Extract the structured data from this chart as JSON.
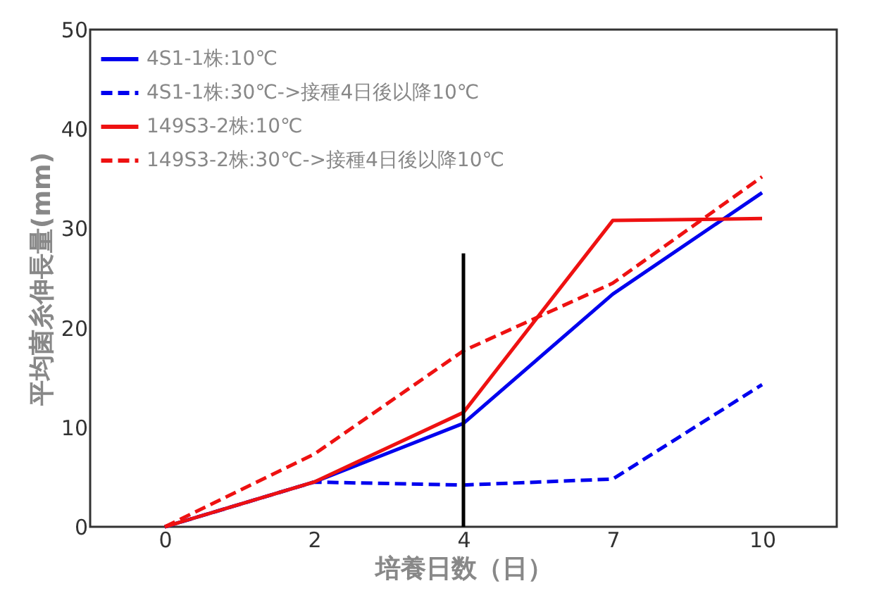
{
  "chart_data": {
    "type": "line",
    "xlabel": "培養日数（日）",
    "ylabel": "平均菌糸伸長量(mm)",
    "categories": [
      "0",
      "2",
      "4",
      "7",
      "10"
    ],
    "ylim": [
      0,
      50
    ],
    "yticks": [
      0,
      10,
      20,
      30,
      40,
      50
    ],
    "grid": false,
    "legend": "top left",
    "marker": "none",
    "series": [
      {
        "name": "4S1-1株:10℃",
        "color": "#0000ee",
        "line_style": "solid",
        "values": [
          0,
          4.5,
          10.4,
          23.4,
          33.6
        ]
      },
      {
        "name": "4S1-1株:30℃->接種4日後以降10℃",
        "color": "#0000ee",
        "line_style": "dashed",
        "values": [
          0,
          4.5,
          4.2,
          4.8,
          14.3
        ]
      },
      {
        "name": "149S3-2株:10℃",
        "color": "#ee1111",
        "line_style": "solid",
        "values": [
          0,
          4.5,
          11.5,
          30.8,
          31
        ]
      },
      {
        "name": "149S3-2株:30℃->接種4日後以降10℃",
        "color": "#ee1111",
        "line_style": "dashed",
        "values": [
          0,
          7.3,
          17.7,
          24.5,
          35.2
        ]
      },
      {
        "type": "line",
        "color": "#000000",
        "line_style": "solid",
        "x": [
          "4",
          "4"
        ],
        "values": [
          0,
          27.5
        ]
      }
    ]
  }
}
